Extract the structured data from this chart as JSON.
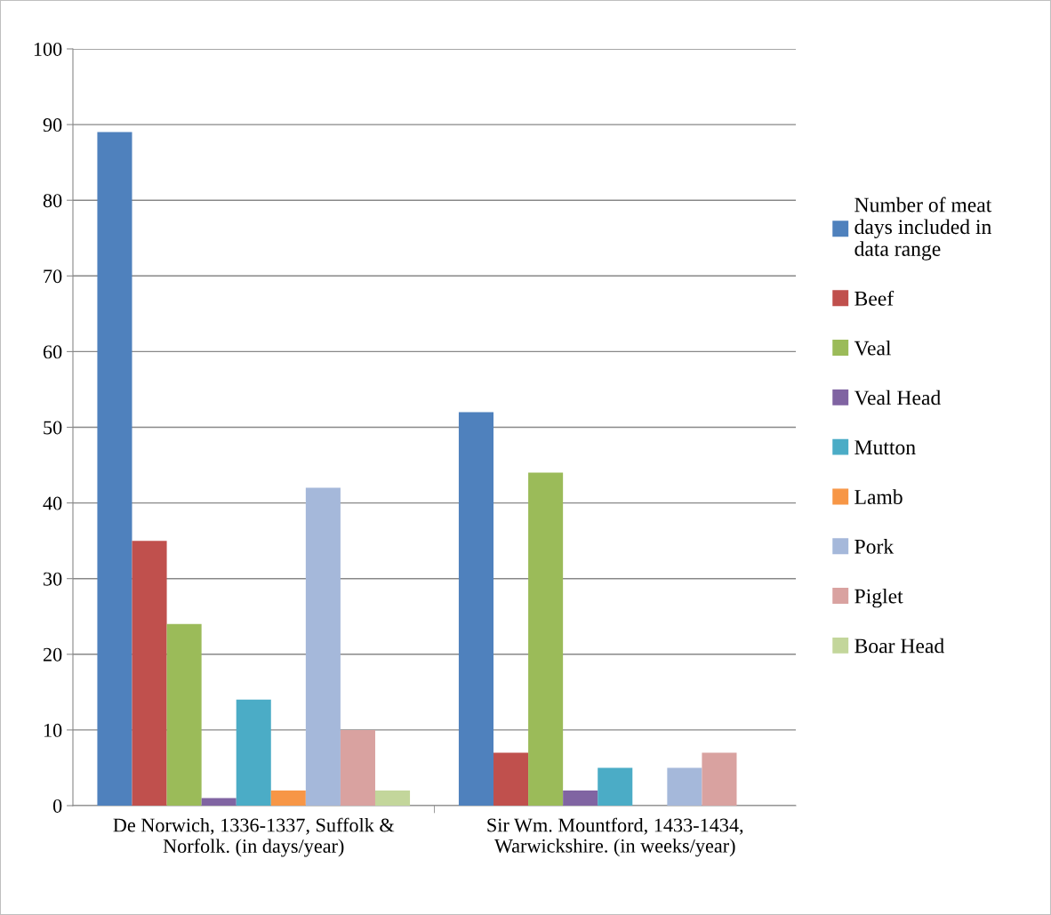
{
  "chart_data": {
    "type": "bar",
    "categories": [
      "De Norwich, 1336-1337, Suffolk &\nNorfolk. (in days/year)",
      "Sir Wm. Mountford, 1433-1434,\nWarwickshire. (in weeks/year)"
    ],
    "series": [
      {
        "name": "Number of meat\ndays included in\ndata range",
        "color": "#4f81bd",
        "values": [
          89,
          52
        ]
      },
      {
        "name": "Beef",
        "color": "#c0504d",
        "values": [
          35,
          7
        ]
      },
      {
        "name": "Veal",
        "color": "#9bbb59",
        "values": [
          24,
          44
        ]
      },
      {
        "name": "Veal Head",
        "color": "#8064a2",
        "values": [
          1,
          2
        ]
      },
      {
        "name": "Mutton",
        "color": "#4bacc6",
        "values": [
          14,
          5
        ]
      },
      {
        "name": "Lamb",
        "color": "#f79646",
        "values": [
          2,
          null
        ]
      },
      {
        "name": "Pork",
        "color": "#a5b8da",
        "values": [
          42,
          5
        ]
      },
      {
        "name": "Piglet",
        "color": "#d9a2a0",
        "values": [
          10,
          7
        ]
      },
      {
        "name": "Boar Head",
        "color": "#c3d69b",
        "values": [
          2,
          null
        ]
      }
    ],
    "ylim": [
      0,
      100
    ],
    "yticks": [
      0,
      10,
      20,
      30,
      40,
      50,
      60,
      70,
      80,
      90,
      100
    ],
    "grid": "y",
    "legend": "right"
  }
}
